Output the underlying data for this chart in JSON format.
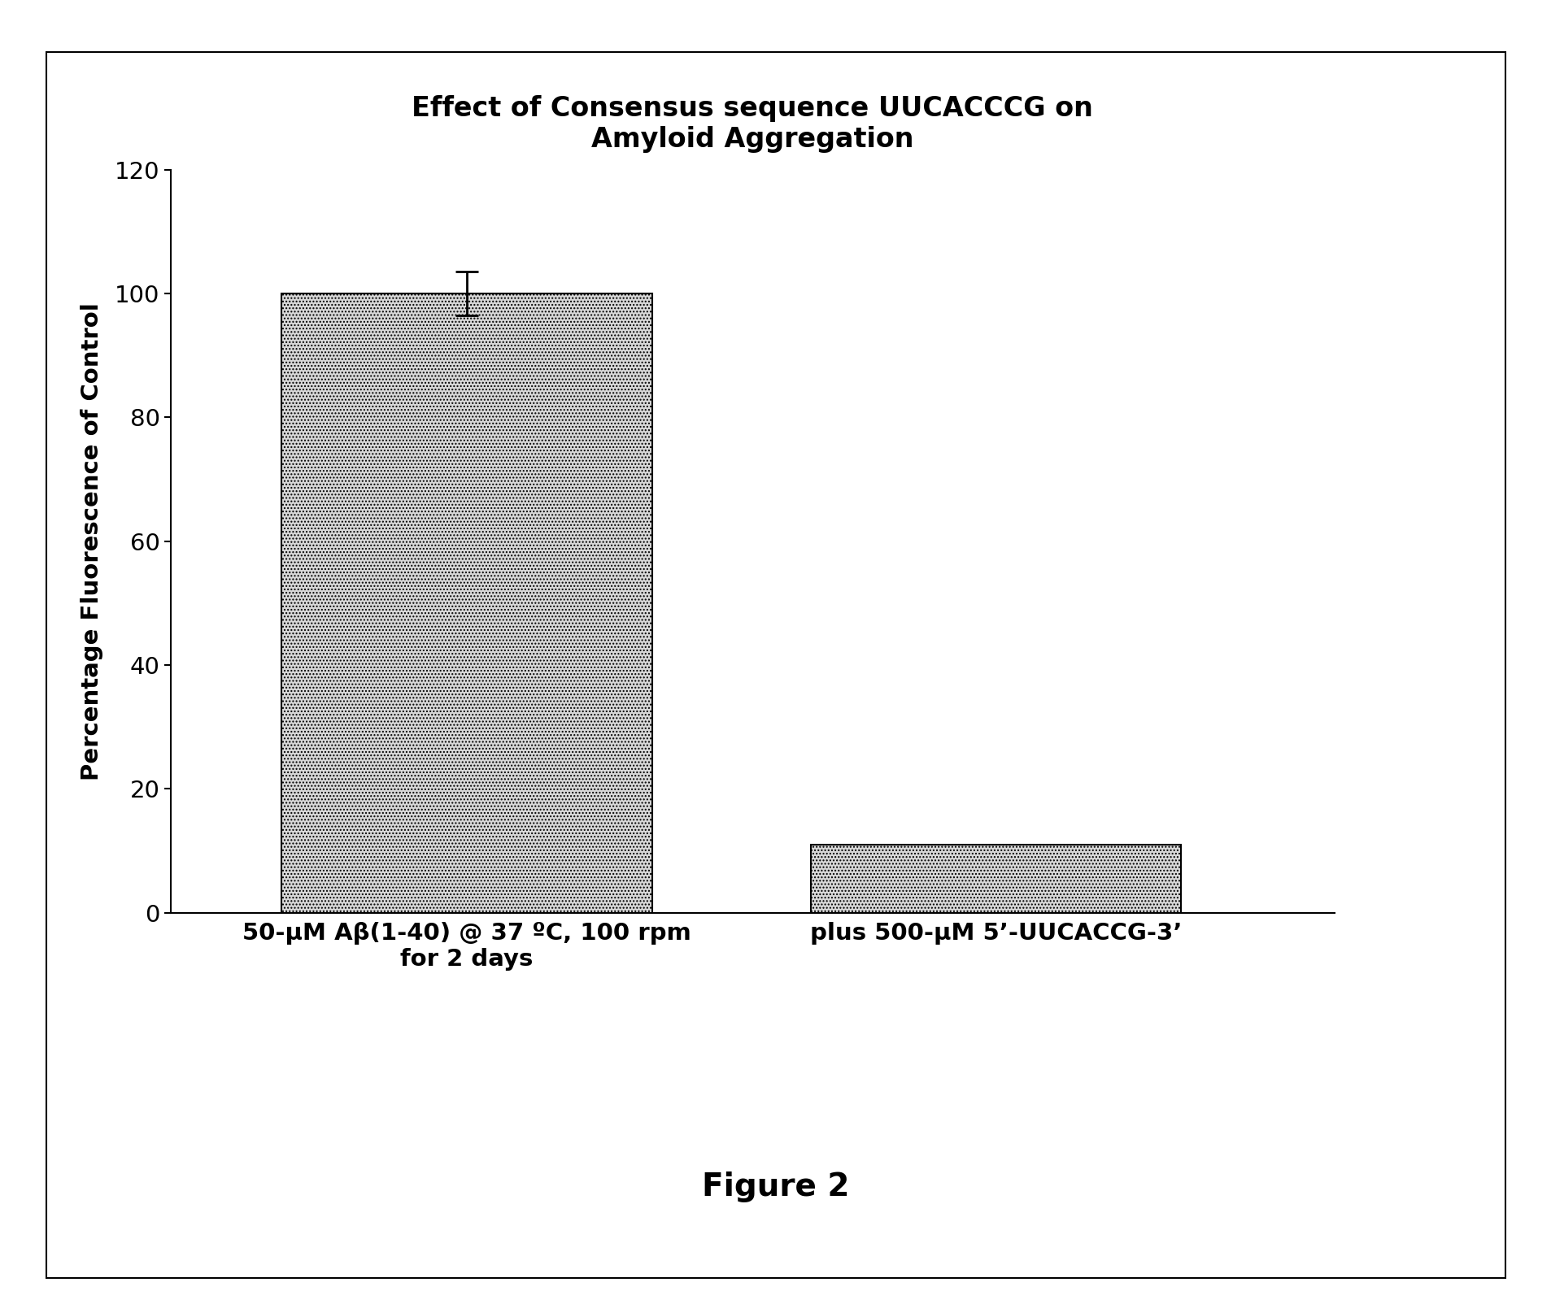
{
  "title_line1": "Effect of Consensus sequence UUCACCCG on",
  "title_line2": "Amyloid Aggregation",
  "ylabel": "Percentage Fluorescence of Control",
  "categories": [
    "50-μM Aβ(1-40) @ 37 ºC, 100 rpm\nfor 2 days",
    "plus 500-μM 5’-UUCACCG-3’"
  ],
  "values": [
    100.0,
    11.0
  ],
  "errors": [
    3.5,
    0.0
  ],
  "ylim": [
    0,
    120
  ],
  "yticks": [
    0,
    20,
    40,
    60,
    80,
    100,
    120
  ],
  "bar_color": "#d8d8d8",
  "bar_edgecolor": "#000000",
  "bar_width": 0.35,
  "bar_positions": [
    0.28,
    0.78
  ],
  "figure_caption": "Figure 2",
  "title_fontsize": 24,
  "label_fontsize": 21,
  "tick_fontsize": 21,
  "caption_fontsize": 28,
  "hatch_pattern": "....",
  "background_color": "#ffffff",
  "spine_color": "#000000"
}
